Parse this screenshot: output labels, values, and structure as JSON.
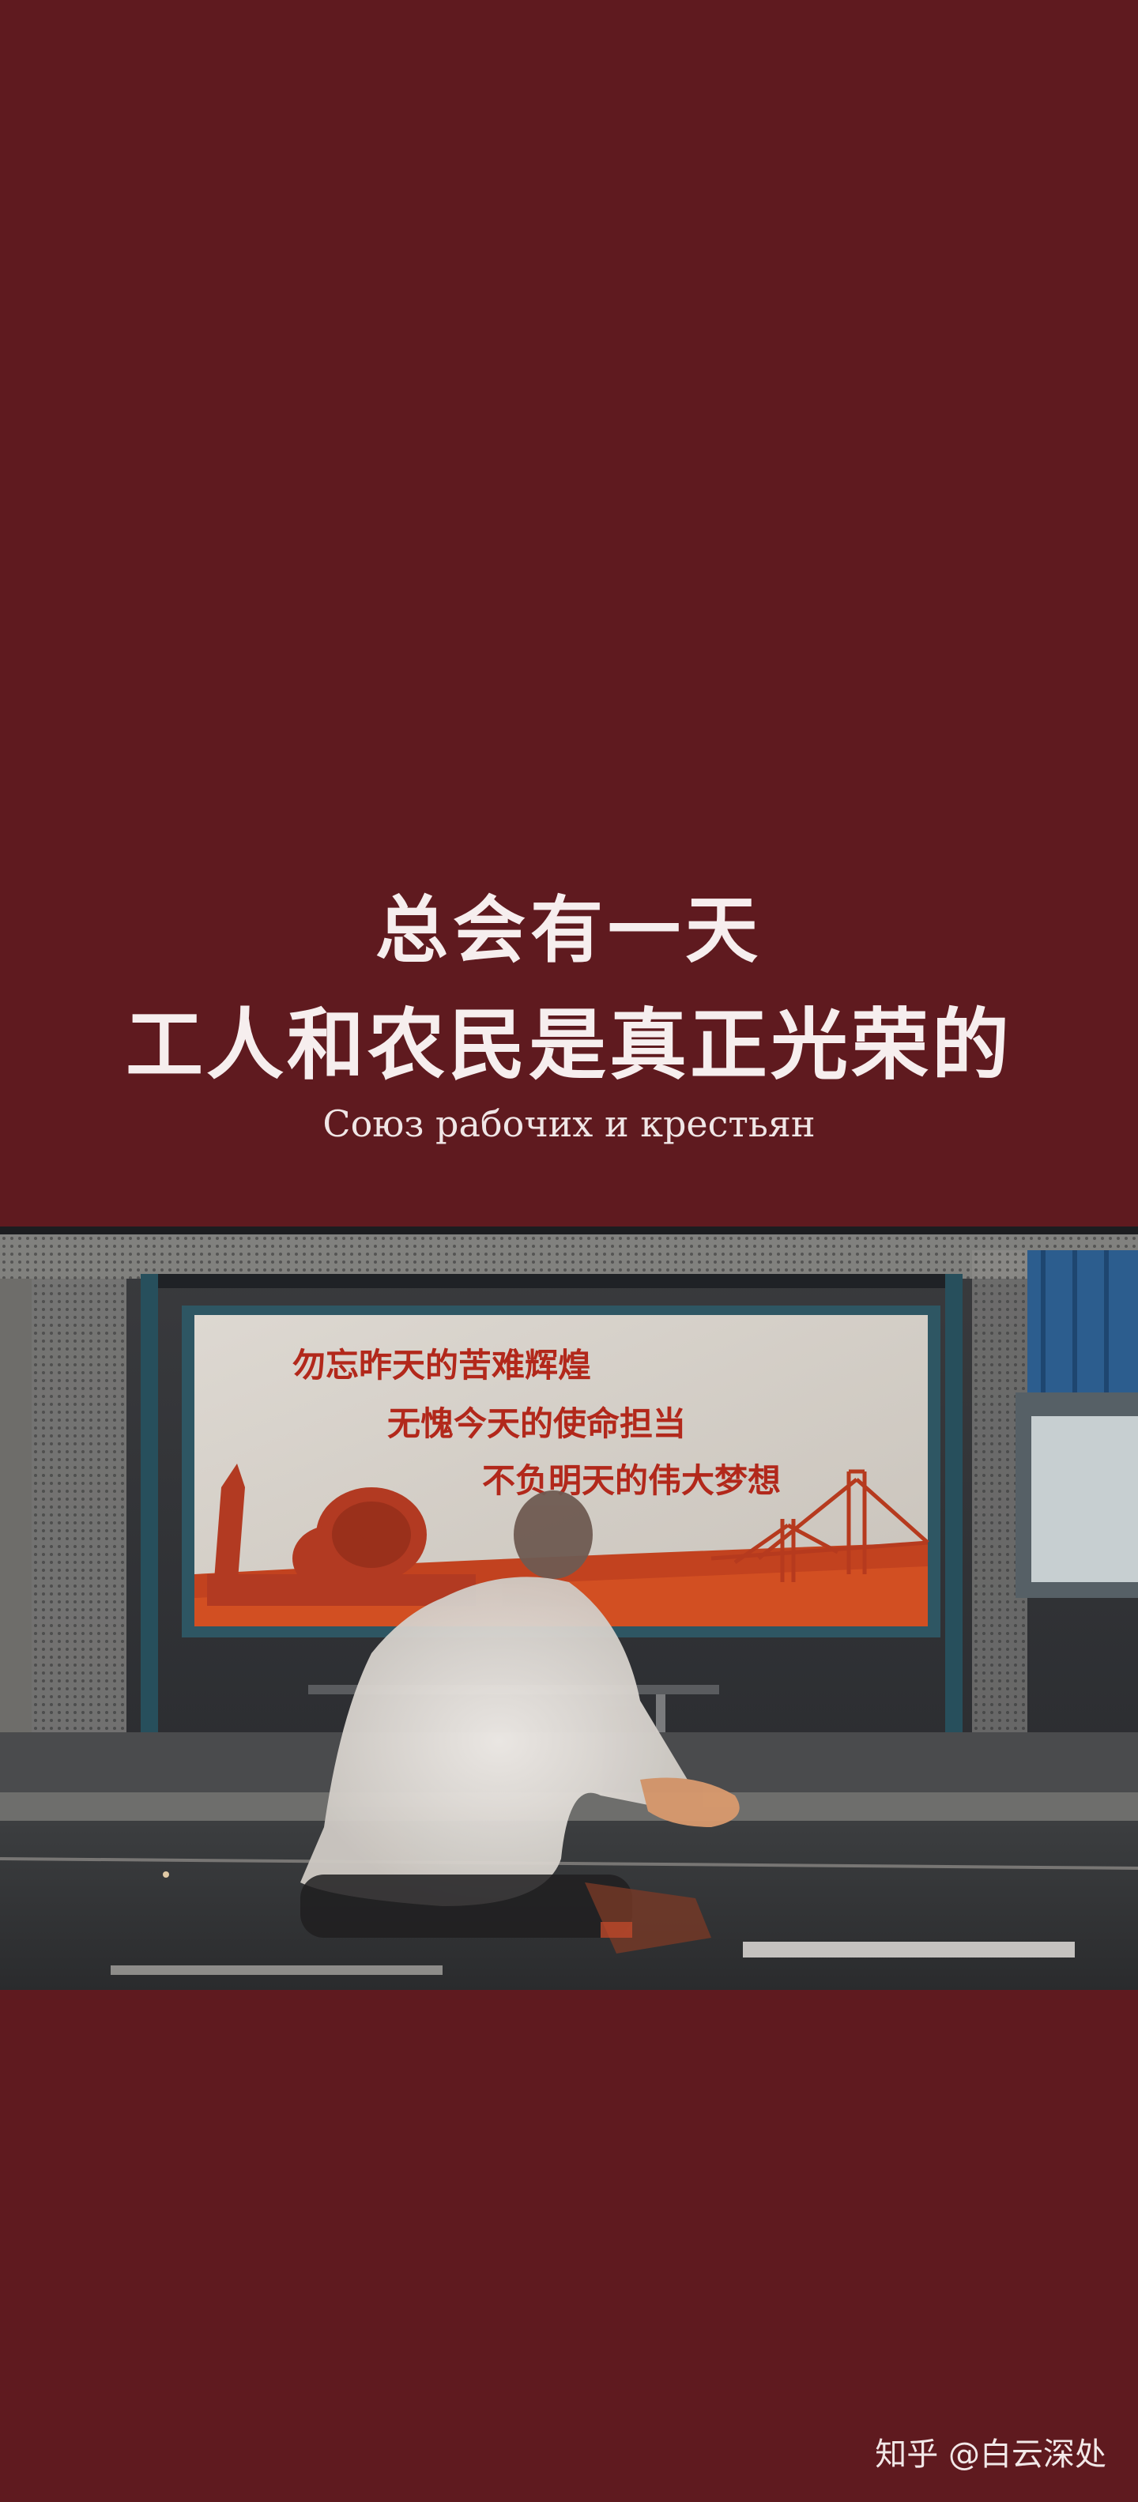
{
  "poster": {
    "headline_line1": "总会有一天",
    "headline_line2": "工人和农民是真正光荣的",
    "subtitle": "Союз рабочих и крестьян"
  },
  "photo": {
    "billboard_lines": [
      "勿忘昨天的苦难辉煌",
      "无愧今天的使命担当",
      "不负明天的伟大梦想"
    ]
  },
  "watermark": "知乎 @白云深处",
  "colors": {
    "background": "#5f1a1f",
    "text": "#f6eeee",
    "billboard_text": "#b2281b"
  }
}
